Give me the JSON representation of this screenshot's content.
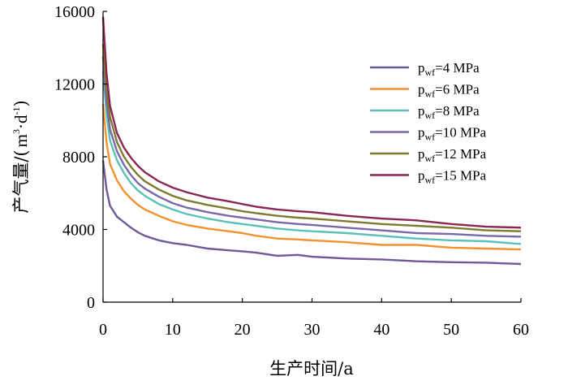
{
  "chart_data": {
    "type": "line",
    "title": "",
    "xlabel": "生产时间/a",
    "ylabel_main": "产气量/(",
    "ylabel_unit_m": "m",
    "ylabel_exp3": "3",
    "ylabel_unit_d": "·d",
    "ylabel_exp_neg1": "-1",
    "ylabel_close": ")",
    "xlim": [
      0,
      60
    ],
    "ylim": [
      0,
      16000
    ],
    "xticks": [
      0,
      10,
      20,
      30,
      40,
      50,
      60
    ],
    "yticks": [
      0,
      4000,
      8000,
      12000,
      16000
    ],
    "xtick_labels": [
      "0",
      "10",
      "20",
      "30",
      "40",
      "50",
      "60"
    ],
    "ytick_labels": [
      "0",
      "4000",
      "8000",
      "12000",
      "16000"
    ],
    "legend_position": "top-right",
    "series": [
      {
        "name": "pwf=4 MPa",
        "legend_p": "p",
        "legend_sub": "wf",
        "legend_rest": "=4 MPa",
        "color": "#6E5A96",
        "x": [
          0,
          0.5,
          1,
          2,
          3,
          4,
          5,
          6,
          8,
          10,
          12,
          15,
          18,
          20,
          22,
          25,
          28,
          30,
          35,
          40,
          45,
          50,
          55,
          60
        ],
        "y": [
          7800,
          6200,
          5300,
          4700,
          4400,
          4100,
          3850,
          3650,
          3400,
          3250,
          3150,
          2950,
          2850,
          2800,
          2720,
          2550,
          2600,
          2500,
          2400,
          2350,
          2250,
          2200,
          2170,
          2100
        ]
      },
      {
        "name": "pwf=6 MPa",
        "legend_p": "p",
        "legend_sub": "wf",
        "legend_rest": "=6 MPa",
        "color": "#F2922E",
        "x": [
          0,
          0.5,
          1,
          2,
          3,
          4,
          5,
          6,
          8,
          10,
          12,
          15,
          18,
          20,
          22,
          25,
          28,
          30,
          35,
          40,
          45,
          50,
          55,
          60
        ],
        "y": [
          10900,
          8800,
          7600,
          6700,
          6100,
          5700,
          5350,
          5100,
          4750,
          4450,
          4250,
          4050,
          3900,
          3800,
          3650,
          3500,
          3450,
          3400,
          3300,
          3150,
          3150,
          3000,
          2950,
          2900
        ]
      },
      {
        "name": "pwf=8 MPa",
        "legend_p": "p",
        "legend_sub": "wf",
        "legend_rest": "=8 MPa",
        "color": "#5BC0B8",
        "x": [
          0,
          0.5,
          1,
          2,
          3,
          4,
          5,
          6,
          8,
          10,
          12,
          15,
          18,
          20,
          22,
          25,
          28,
          30,
          35,
          40,
          45,
          50,
          55,
          60
        ],
        "y": [
          12700,
          10300,
          8900,
          7800,
          7100,
          6550,
          6150,
          5850,
          5400,
          5100,
          4850,
          4600,
          4400,
          4300,
          4200,
          4050,
          3950,
          3900,
          3800,
          3650,
          3500,
          3400,
          3350,
          3200
        ]
      },
      {
        "name": "pwf=10 MPa",
        "legend_p": "p",
        "legend_sub": "wf",
        "legend_rest": "=10 MPa",
        "color": "#7A68A8",
        "x": [
          0,
          0.5,
          1,
          2,
          3,
          4,
          5,
          6,
          8,
          10,
          12,
          15,
          18,
          20,
          22,
          25,
          28,
          30,
          35,
          40,
          45,
          50,
          55,
          60
        ],
        "y": [
          13500,
          11000,
          9500,
          8300,
          7550,
          7000,
          6550,
          6250,
          5800,
          5450,
          5200,
          4950,
          4750,
          4650,
          4550,
          4400,
          4300,
          4250,
          4100,
          3950,
          3800,
          3750,
          3650,
          3600
        ]
      },
      {
        "name": "pwf=12 MPa",
        "legend_p": "p",
        "legend_sub": "wf",
        "legend_rest": "=12 MPa",
        "color": "#7F7A2E",
        "x": [
          0,
          0.5,
          1,
          2,
          3,
          4,
          5,
          6,
          8,
          10,
          12,
          15,
          18,
          20,
          22,
          25,
          28,
          30,
          35,
          40,
          45,
          50,
          55,
          60
        ],
        "y": [
          14200,
          11700,
          10200,
          8800,
          8000,
          7450,
          7000,
          6650,
          6200,
          5850,
          5600,
          5350,
          5150,
          5000,
          4900,
          4750,
          4650,
          4600,
          4450,
          4300,
          4200,
          4100,
          3950,
          3900
        ]
      },
      {
        "name": "pwf=15 MPa",
        "legend_p": "p",
        "legend_sub": "wf",
        "legend_rest": "=15 MPa",
        "color": "#8B2752",
        "x": [
          0,
          0.5,
          1,
          2,
          3,
          4,
          5,
          6,
          8,
          10,
          12,
          15,
          18,
          20,
          22,
          25,
          28,
          30,
          35,
          40,
          45,
          50,
          55,
          60
        ],
        "y": [
          15700,
          12600,
          10800,
          9300,
          8500,
          7950,
          7500,
          7150,
          6650,
          6300,
          6050,
          5750,
          5550,
          5400,
          5250,
          5100,
          5000,
          4950,
          4750,
          4600,
          4500,
          4300,
          4150,
          4100
        ]
      }
    ]
  }
}
